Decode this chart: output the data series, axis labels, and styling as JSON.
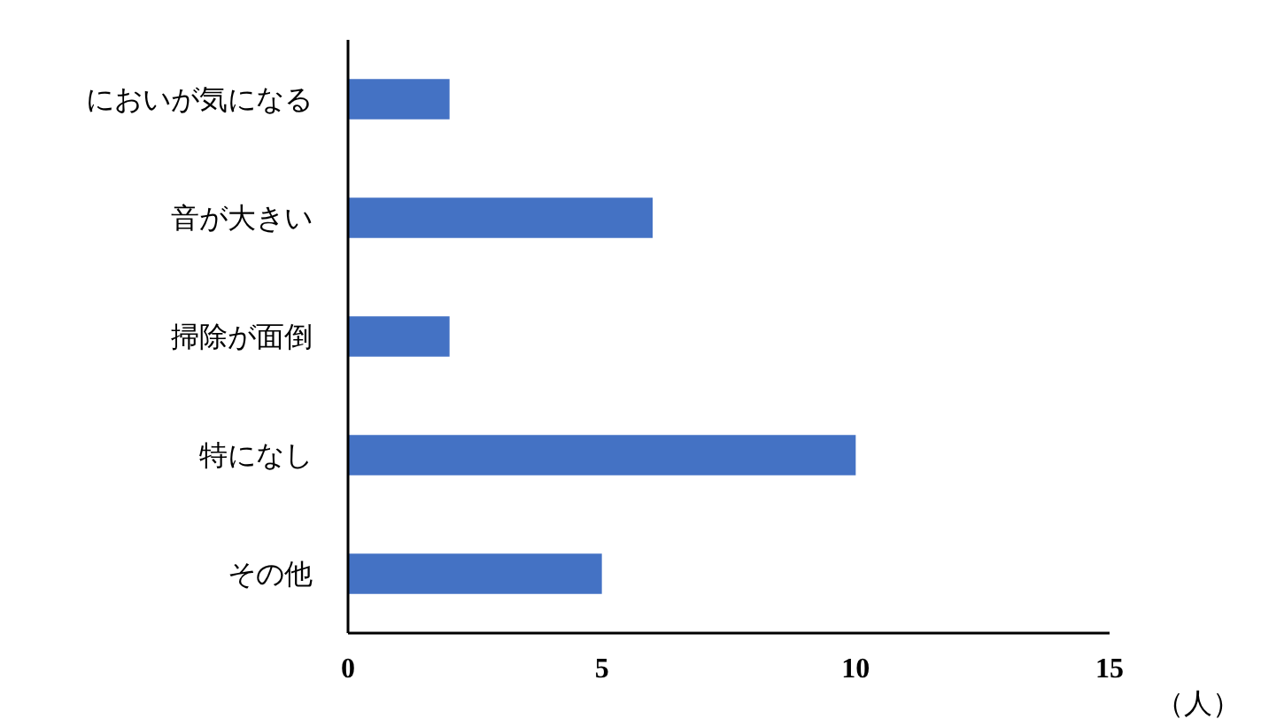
{
  "chart_data": {
    "type": "bar",
    "orientation": "horizontal",
    "categories": [
      "においが気になる",
      "音が大きい",
      "掃除が面倒",
      "特になし",
      "その他"
    ],
    "values": [
      2,
      6,
      2,
      10,
      5
    ],
    "color": "#4472c4",
    "xlim": [
      0,
      15
    ],
    "xticks": [
      0,
      5,
      10,
      15
    ],
    "xlabel": "（人）",
    "grid": false
  }
}
